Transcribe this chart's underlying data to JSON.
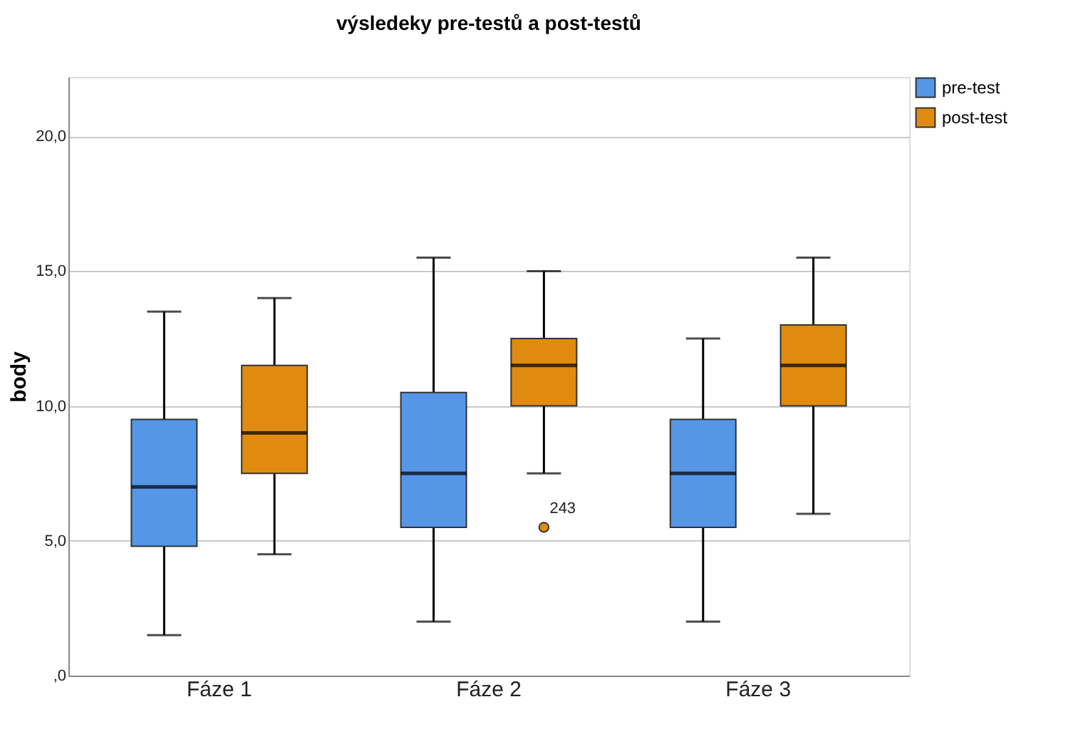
{
  "chart_data": {
    "type": "box",
    "title": "výsledeky pre-testů a post-testů",
    "ylabel": "body",
    "categories": [
      "Fáze 1",
      "Fáze 2",
      "Fáze 3"
    ],
    "series": [
      {
        "name": "pre-test",
        "color": "#5596e6",
        "boxes": [
          {
            "low": 1.5,
            "q1": 4.8,
            "median": 7.0,
            "q3": 9.5,
            "high": 13.5
          },
          {
            "low": 2.0,
            "q1": 5.5,
            "median": 7.5,
            "q3": 10.5,
            "high": 15.5
          },
          {
            "low": 2.0,
            "q1": 5.5,
            "median": 7.5,
            "q3": 9.5,
            "high": 12.5
          }
        ]
      },
      {
        "name": "post-test",
        "color": "#e08b10",
        "boxes": [
          {
            "low": 4.5,
            "q1": 7.5,
            "median": 9.0,
            "q3": 11.5,
            "high": 14.0
          },
          {
            "low": 7.5,
            "q1": 10.0,
            "median": 11.5,
            "q3": 12.5,
            "high": 15.0,
            "outliers": [
              5.5
            ]
          },
          {
            "low": 6.0,
            "q1": 10.0,
            "median": 11.5,
            "q3": 13.0,
            "high": 15.5
          }
        ]
      }
    ],
    "ylim": [
      0,
      22.2
    ],
    "yticks": [
      {
        "value": 0,
        "label": ",0"
      },
      {
        "value": 5,
        "label": "5,0"
      },
      {
        "value": 10,
        "label": "10,0"
      },
      {
        "value": 15,
        "label": "15,0"
      },
      {
        "value": 20,
        "label": "20,0"
      }
    ],
    "grid": "y",
    "legend": "top right",
    "annotations": [
      "243"
    ]
  }
}
